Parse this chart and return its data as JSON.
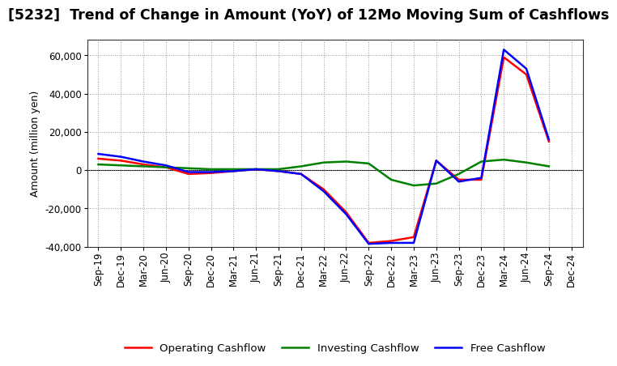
{
  "title": "[5232]  Trend of Change in Amount (YoY) of 12Mo Moving Sum of Cashflows",
  "ylabel": "Amount (million yen)",
  "x_labels": [
    "Sep-19",
    "Dec-19",
    "Mar-20",
    "Jun-20",
    "Sep-20",
    "Dec-20",
    "Mar-21",
    "Jun-21",
    "Sep-21",
    "Dec-21",
    "Mar-22",
    "Jun-22",
    "Sep-22",
    "Dec-22",
    "Mar-23",
    "Jun-23",
    "Sep-23",
    "Dec-23",
    "Mar-24",
    "Jun-24",
    "Sep-24",
    "Dec-24"
  ],
  "operating_cashflow": [
    6000,
    5000,
    3000,
    1500,
    -2000,
    -1500,
    -500,
    500,
    -500,
    -2000,
    -10000,
    -22000,
    -38000,
    -37000,
    -35000,
    5000,
    -5000,
    -5000,
    59000,
    50000,
    15000,
    null
  ],
  "investing_cashflow": [
    3000,
    2500,
    2000,
    1500,
    1000,
    500,
    500,
    500,
    500,
    2000,
    4000,
    4500,
    3500,
    -5000,
    -8000,
    -7000,
    -2000,
    4500,
    5500,
    4000,
    2000,
    null
  ],
  "free_cashflow": [
    8500,
    7000,
    4500,
    2500,
    -1000,
    -1000,
    -500,
    500,
    -500,
    -2000,
    -11000,
    -23000,
    -38500,
    -38000,
    -38000,
    5000,
    -6000,
    -4000,
    63000,
    53000,
    16000,
    null
  ],
  "colors": {
    "operating": "#ff0000",
    "investing": "#008000",
    "free": "#0000ff"
  },
  "ylim": [
    -40000,
    68000
  ],
  "yticks": [
    -40000,
    -20000,
    0,
    20000,
    40000,
    60000
  ],
  "background_color": "#ffffff",
  "grid_color": "#999999",
  "line_width": 1.8,
  "title_fontsize": 12.5,
  "legend_fontsize": 9.5,
  "tick_fontsize": 8.5,
  "ylabel_fontsize": 9
}
